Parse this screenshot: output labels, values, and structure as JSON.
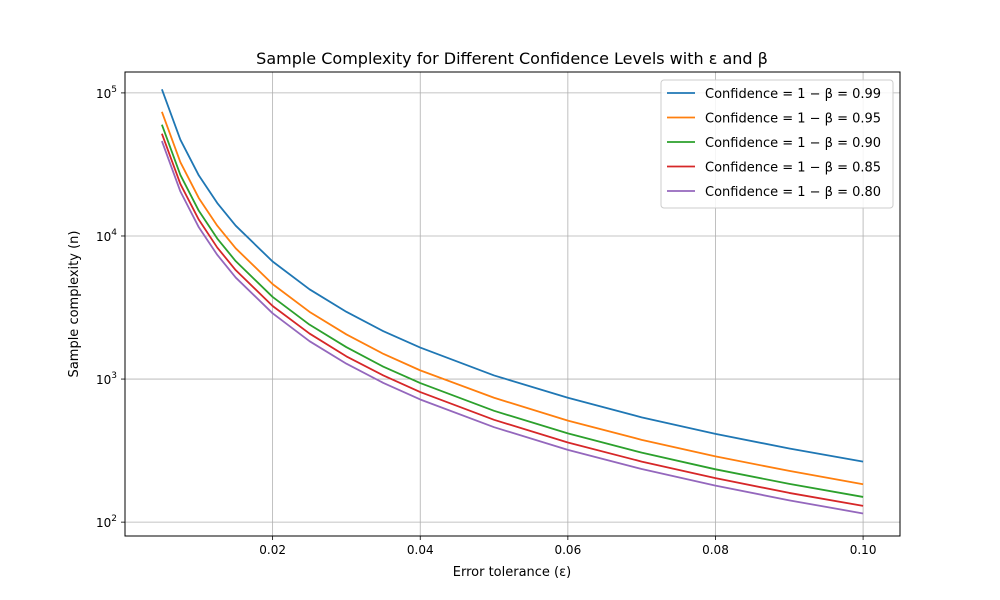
{
  "chart_data": {
    "type": "line",
    "title": "Sample Complexity for Different Confidence Levels with ε and β",
    "xlabel": "Error tolerance (ε)",
    "ylabel": "Sample complexity (n)",
    "xlim": [
      0.0,
      0.105
    ],
    "ylim": [
      80,
      140000
    ],
    "y_scale": "log",
    "grid": true,
    "legend_position": "top-right",
    "x_ticks": [
      {
        "value": 0.02,
        "label": "0.02"
      },
      {
        "value": 0.04,
        "label": "0.04"
      },
      {
        "value": 0.06,
        "label": "0.06"
      },
      {
        "value": 0.08,
        "label": "0.08"
      },
      {
        "value": 0.1,
        "label": "0.10"
      }
    ],
    "y_ticks": [
      {
        "value": 100,
        "base": "10",
        "exp": "2"
      },
      {
        "value": 1000,
        "base": "10",
        "exp": "3"
      },
      {
        "value": 10000,
        "base": "10",
        "exp": "4"
      },
      {
        "value": 100000,
        "base": "10",
        "exp": "5"
      }
    ],
    "x": [
      0.005,
      0.0075,
      0.01,
      0.0125,
      0.015,
      0.02,
      0.025,
      0.03,
      0.035,
      0.04,
      0.05,
      0.06,
      0.07,
      0.08,
      0.09,
      0.1
    ],
    "series": [
      {
        "name": "Confidence = 1 − β = 0.99",
        "color": "#1f77b4",
        "values": [
          106000,
          47100,
          26500,
          17000,
          11800,
          6630,
          4240,
          2950,
          2160,
          1660,
          1060,
          740,
          540,
          414,
          327,
          265
        ]
      },
      {
        "name": "Confidence = 1 − β = 0.95",
        "color": "#ff7f0e",
        "values": [
          73800,
          32800,
          18400,
          11800,
          8200,
          4610,
          2950,
          2050,
          1500,
          1150,
          740,
          512,
          376,
          288,
          228,
          184
        ]
      },
      {
        "name": "Confidence = 1 − β = 0.90",
        "color": "#2ca02c",
        "values": [
          60000,
          26700,
          15000,
          9600,
          6670,
          3750,
          2400,
          1670,
          1220,
          938,
          600,
          417,
          306,
          234,
          185,
          150
        ]
      },
      {
        "name": "Confidence = 1 − β = 0.85",
        "color": "#d62728",
        "values": [
          51900,
          23100,
          13000,
          8300,
          5770,
          3240,
          2080,
          1440,
          1060,
          811,
          519,
          360,
          265,
          203,
          160,
          130
        ]
      },
      {
        "name": "Confidence = 1 − β = 0.80",
        "color": "#9467bd",
        "values": [
          46100,
          20500,
          11500,
          7380,
          5120,
          2880,
          1840,
          1280,
          940,
          720,
          461,
          320,
          235,
          180,
          142,
          115
        ]
      }
    ]
  }
}
